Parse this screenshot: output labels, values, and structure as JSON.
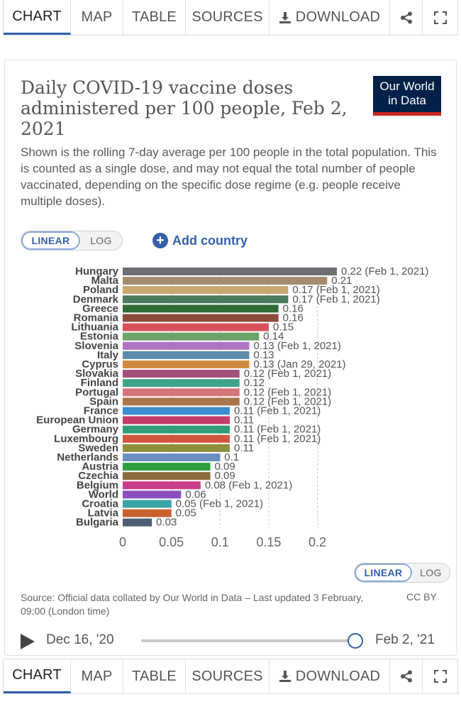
{
  "tabs": {
    "chart": "CHART",
    "map": "MAP",
    "table": "TABLE",
    "sources": "SOURCES",
    "download": "DOWNLOAD",
    "share_icon": "share-icon",
    "fullscreen_icon": "fullscreen-icon",
    "download_icon": "download-icon"
  },
  "header": {
    "title": "Daily COVID-19 vaccine doses administered per 100 people, Feb 2, 2021",
    "subtitle": "Shown is the rolling 7-day average per 100 people in the total population. This is counted as a single dose, and may not equal the total number of people vaccinated, depending on the specific dose regime (e.g. people receive multiple doses).",
    "logo_line1": "Our World",
    "logo_line2": "in Data"
  },
  "controls": {
    "linear": "LINEAR",
    "log": "LOG",
    "add_country": "Add country"
  },
  "footer": {
    "source": "Source: Official data collated by Our World in Data – Last updated 3 February, 09:00 (London time)",
    "license": "CC BY"
  },
  "timeline": {
    "start": "Dec 16, '20",
    "end": "Feb 2, '21",
    "position": 1.0
  },
  "colors": {
    "accent": "#3360a9",
    "logo_bg": "#002147",
    "logo_bar": "#ce261e"
  },
  "chart_data": {
    "type": "bar",
    "orientation": "horizontal",
    "xlim": [
      0,
      0.22
    ],
    "xticks": [
      0,
      0.05,
      0.1,
      0.15,
      0.2
    ],
    "grid": true,
    "categories": [
      "Hungary",
      "Malta",
      "Poland",
      "Denmark",
      "Greece",
      "Romania",
      "Lithuania",
      "Estonia",
      "Slovenia",
      "Italy",
      "Cyprus",
      "Slovakia",
      "Finland",
      "Portugal",
      "Spain",
      "France",
      "European Union",
      "Germany",
      "Luxembourg",
      "Sweden",
      "Netherlands",
      "Austria",
      "Czechia",
      "Belgium",
      "World",
      "Croatia",
      "Latvia",
      "Bulgaria"
    ],
    "values": [
      0.22,
      0.21,
      0.17,
      0.17,
      0.16,
      0.16,
      0.15,
      0.14,
      0.13,
      0.13,
      0.13,
      0.12,
      0.12,
      0.12,
      0.12,
      0.11,
      0.11,
      0.11,
      0.11,
      0.11,
      0.1,
      0.09,
      0.09,
      0.08,
      0.06,
      0.05,
      0.05,
      0.03
    ],
    "value_labels": [
      "0.22 (Feb 1, 2021)",
      "0.21",
      "0.17 (Feb 1, 2021)",
      "0.17 (Feb 1, 2021)",
      "0.16",
      "0.16",
      "0.15",
      "0.14",
      "0.13 (Feb 1, 2021)",
      "0.13",
      "0.13 (Jan 29, 2021)",
      "0.12 (Feb 1, 2021)",
      "0.12",
      "0.12 (Feb 1, 2021)",
      "0.12 (Feb 1, 2021)",
      "0.11 (Feb 1, 2021)",
      "0.11",
      "0.11 (Feb 1, 2021)",
      "0.11 (Feb 1, 2021)",
      "0.11",
      "0.1",
      "0.09",
      "0.09",
      "0.08 (Feb 1, 2021)",
      "0.06",
      "0.05 (Feb 1, 2021)",
      "0.05",
      "0.03"
    ],
    "colors": [
      "#6d6e71",
      "#a58c6f",
      "#c9a66b",
      "#4c7a5b",
      "#2e6b34",
      "#8b4b3b",
      "#d94f5c",
      "#6ba368",
      "#b071c2",
      "#5c8aa8",
      "#d08a3e",
      "#a44e7a",
      "#3fa28a",
      "#d7747a",
      "#a9754a",
      "#3b8ed0",
      "#c43a6b",
      "#2f9e77",
      "#d4553f",
      "#8d8f3b",
      "#6b8fc2",
      "#2ea043",
      "#8a6a3a",
      "#c93d8b",
      "#8a4fbf",
      "#3aa3a3",
      "#c8612b",
      "#4d5d73"
    ]
  }
}
